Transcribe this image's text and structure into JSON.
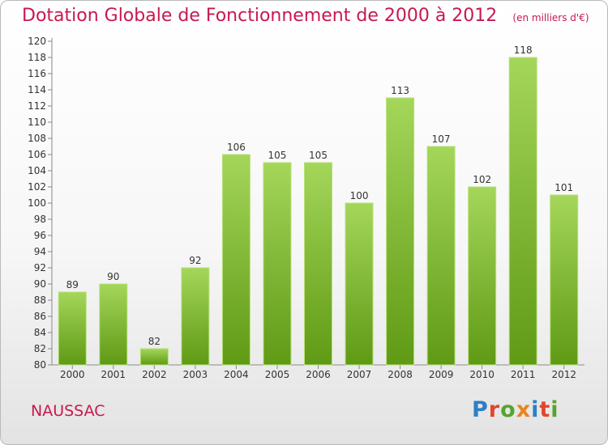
{
  "header": {
    "title": "Dotation Globale de Fonctionnement de 2000 à 2012",
    "unit": "(en milliers d'€)"
  },
  "footer": {
    "commune": "NAUSSAC",
    "brand": "Proxiti"
  },
  "colors": {
    "title": "#c8194e",
    "bar_light": "#a4d65a",
    "bar_dark": "#5f9a15",
    "brand_letters": [
      "#2c7fc6",
      "#e0462c",
      "#58a32e",
      "#e9851c",
      "#2c7fc6",
      "#e0462c",
      "#58a32e"
    ]
  },
  "chart_data": {
    "type": "bar",
    "categories": [
      "2000",
      "2001",
      "2002",
      "2003",
      "2004",
      "2005",
      "2006",
      "2007",
      "2008",
      "2009",
      "2010",
      "2011",
      "2012"
    ],
    "values": [
      89,
      90,
      82,
      92,
      106,
      105,
      105,
      100,
      113,
      107,
      102,
      118,
      101
    ],
    "title": "Dotation Globale de Fonctionnement de 2000 à 2012",
    "ylim": [
      80,
      120
    ],
    "ytick_step": 2,
    "grid": false,
    "legend": "none"
  }
}
